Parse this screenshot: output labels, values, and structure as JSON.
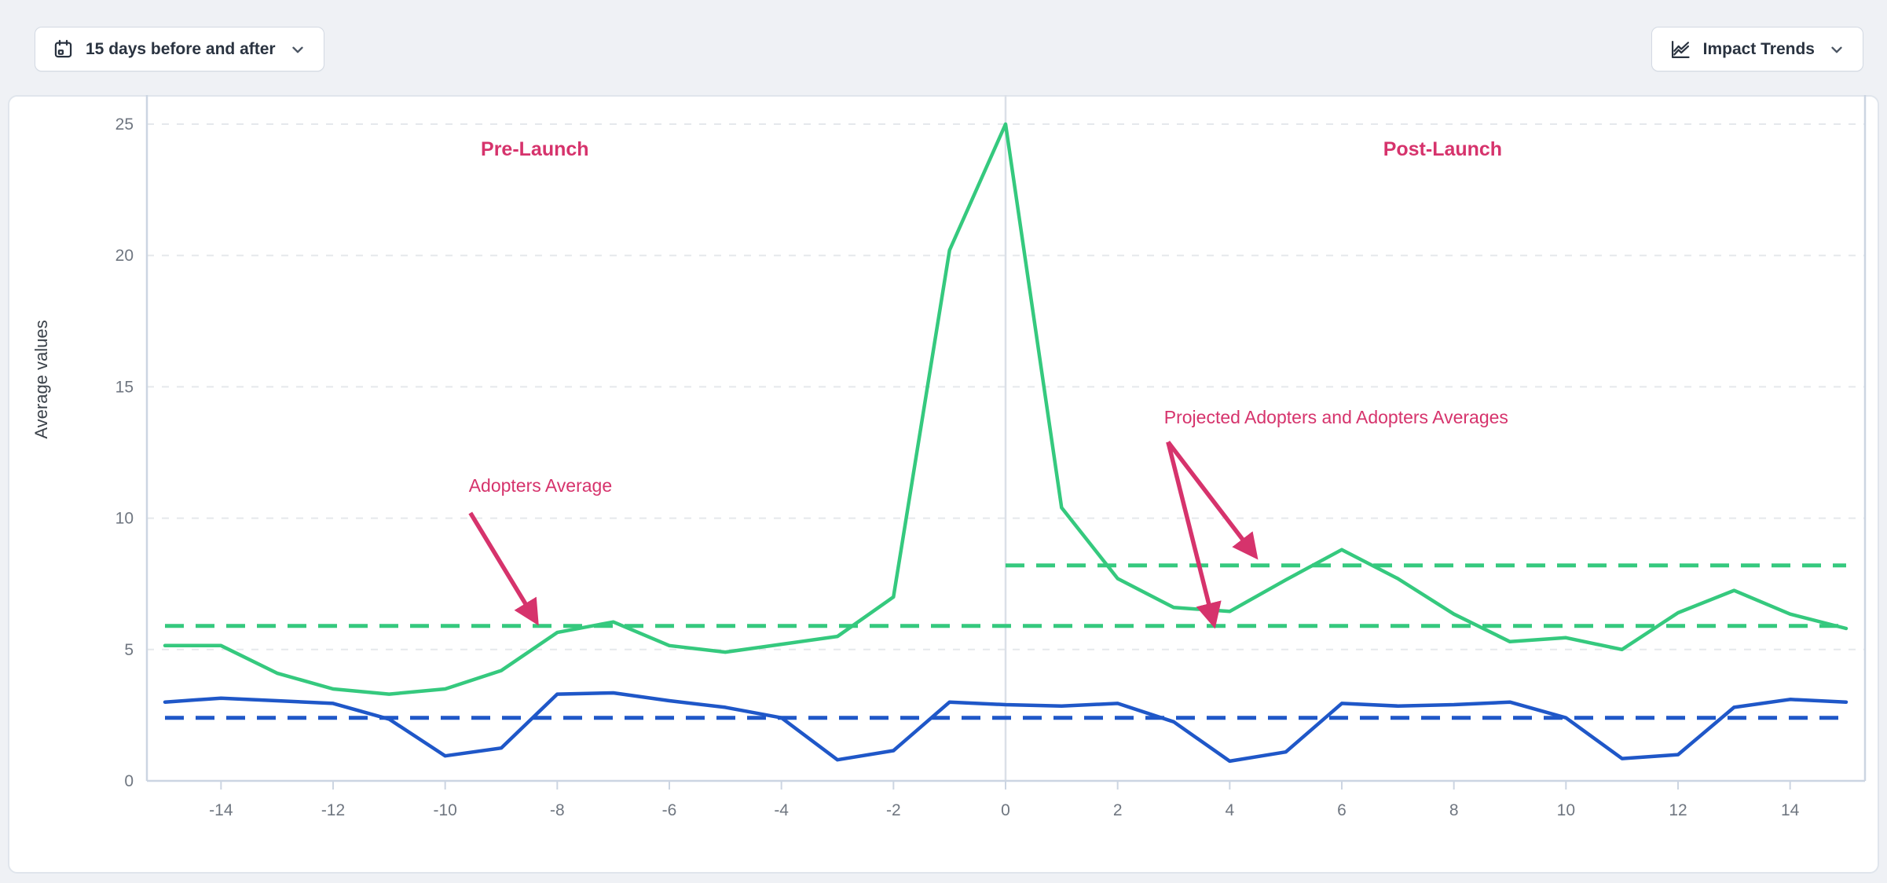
{
  "toolbar": {
    "date_range_button": {
      "label": "15 days before and after"
    },
    "trends_button": {
      "label": "Impact Trends"
    }
  },
  "chart_data": {
    "type": "line",
    "title": "",
    "xlabel": "",
    "ylabel": "Average values",
    "xlim": [
      -15,
      15
    ],
    "ylim": [
      0,
      25
    ],
    "x_ticks": [
      -14,
      -12,
      -10,
      -8,
      -6,
      -4,
      -2,
      0,
      2,
      4,
      6,
      8,
      10,
      12,
      14
    ],
    "y_ticks": [
      0,
      5,
      10,
      15,
      20,
      25
    ],
    "grid": true,
    "legend": "none",
    "vertical_line_x": 0,
    "x": [
      -15,
      -14,
      -13,
      -12,
      -11,
      -10,
      -9,
      -8,
      -7,
      -6,
      -5,
      -4,
      -3,
      -2,
      -1,
      0,
      1,
      2,
      3,
      4,
      5,
      6,
      7,
      8,
      9,
      10,
      11,
      12,
      13,
      14,
      15
    ],
    "series": [
      {
        "name": "Adopters",
        "color": "#35c97e",
        "values": [
          5.15,
          5.15,
          4.1,
          3.5,
          3.3,
          3.5,
          4.2,
          5.65,
          6.05,
          5.15,
          4.9,
          5.2,
          5.5,
          7.0,
          20.2,
          25.0,
          10.4,
          7.7,
          6.6,
          6.45,
          7.65,
          8.8,
          7.7,
          6.35,
          5.3,
          5.45,
          5.0,
          6.4,
          7.25,
          6.35,
          5.8
        ]
      },
      {
        "name": "Projected Adopters",
        "color": "#1f57c8",
        "values": [
          3.0,
          3.15,
          3.05,
          2.95,
          2.35,
          0.95,
          1.25,
          3.3,
          3.35,
          3.05,
          2.8,
          2.4,
          0.8,
          1.15,
          3.0,
          2.9,
          2.85,
          2.95,
          2.25,
          0.75,
          1.1,
          2.95,
          2.85,
          2.9,
          3.0,
          2.4,
          0.85,
          1.0,
          2.8,
          3.1,
          3.0
        ]
      }
    ],
    "reference_lines": [
      {
        "name": "adopters-average-pre-launch",
        "value": 5.9,
        "from": -15,
        "to": 15,
        "color": "#35c97e"
      },
      {
        "name": "adopters-average-post-launch",
        "value": 8.2,
        "from": 0,
        "to": 15,
        "color": "#35c97e"
      },
      {
        "name": "projected-adopters-average",
        "value": 2.4,
        "from": -15,
        "to": 15,
        "color": "#1f57c8"
      }
    ],
    "annotations": [
      {
        "id": "pre-launch",
        "text": "Pre-Launch",
        "x": -8.4,
        "y": 23.8,
        "bold": true,
        "arrows": []
      },
      {
        "id": "post-launch",
        "text": "Post-Launch",
        "x": 7.8,
        "y": 23.8,
        "bold": true,
        "arrows": []
      },
      {
        "id": "adopters-average",
        "text": "Adopters Average",
        "x": -8.3,
        "y": 11.0,
        "bold": false,
        "arrows": [
          {
            "x1": -9.55,
            "y1": 10.2,
            "x2": -8.37,
            "y2": 6.05
          }
        ]
      },
      {
        "id": "projected-and-adopters-averages",
        "text": "Projected Adopters and Adopters Averages",
        "x": 5.9,
        "y": 13.6,
        "bold": false,
        "arrows": [
          {
            "x1": 2.9,
            "y1": 12.9,
            "x2": 4.46,
            "y2": 8.55
          },
          {
            "x1": 2.9,
            "y1": 12.9,
            "x2": 3.72,
            "y2": 5.95
          }
        ]
      }
    ]
  },
  "colors": {
    "annotation": "#d6336c",
    "adopters_line": "#35c97e",
    "projected_line": "#1f57c8",
    "axis": "#ccd5e2",
    "gridline": "#e5e8ec",
    "zero_line": "#dbe0e8",
    "tick_label": "#6f7680",
    "axis_title": "#3a4149",
    "page_bg": "#eff1f5",
    "card_bg": "#ffffff"
  }
}
